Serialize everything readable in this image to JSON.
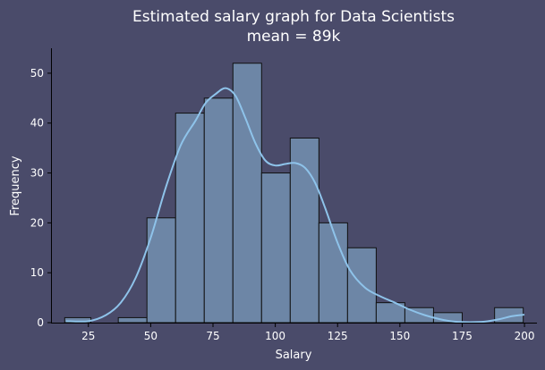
{
  "chart_data": {
    "type": "bar",
    "title_line1": "Estimated salary graph for Data Scientists",
    "title_line2": "mean = 89k",
    "xlabel": "Salary",
    "ylabel": "Frequency",
    "xlim": [
      10,
      205
    ],
    "ylim": [
      0,
      55
    ],
    "xticks": [
      25,
      50,
      75,
      100,
      125,
      150,
      175,
      200
    ],
    "yticks": [
      0,
      10,
      20,
      30,
      40,
      50
    ],
    "bins": [
      {
        "x0": 15.5,
        "x1": 26.0,
        "count": 1
      },
      {
        "x0": 37.0,
        "x1": 48.5,
        "count": 1
      },
      {
        "x0": 48.5,
        "x1": 60.0,
        "count": 21
      },
      {
        "x0": 60.0,
        "x1": 71.5,
        "count": 42
      },
      {
        "x0": 71.5,
        "x1": 83.0,
        "count": 45
      },
      {
        "x0": 83.0,
        "x1": 94.5,
        "count": 52
      },
      {
        "x0": 94.5,
        "x1": 106.0,
        "count": 30
      },
      {
        "x0": 106.0,
        "x1": 117.5,
        "count": 37
      },
      {
        "x0": 117.5,
        "x1": 129.0,
        "count": 20
      },
      {
        "x0": 129.0,
        "x1": 140.5,
        "count": 15
      },
      {
        "x0": 140.5,
        "x1": 152.0,
        "count": 4
      },
      {
        "x0": 152.0,
        "x1": 163.5,
        "count": 3
      },
      {
        "x0": 163.5,
        "x1": 175.0,
        "count": 2
      },
      {
        "x0": 188.0,
        "x1": 199.5,
        "count": 3
      }
    ],
    "kde": {
      "x": [
        16,
        25,
        32,
        38,
        44,
        50,
        56,
        62,
        68,
        72,
        76,
        80,
        84,
        88,
        92,
        96,
        100,
        104,
        108,
        112,
        116,
        120,
        125,
        130,
        136,
        142,
        148,
        154,
        160,
        166,
        172,
        178,
        184,
        190,
        195,
        200
      ],
      "y": [
        0.3,
        0.3,
        1.5,
        4,
        9,
        17,
        27,
        35.5,
        40.5,
        44,
        45.8,
        47,
        45.5,
        41,
        36,
        32.5,
        31.5,
        31.8,
        32,
        31,
        28,
        23,
        16,
        10.5,
        7,
        5.3,
        4,
        2.6,
        1.5,
        0.7,
        0.2,
        0.1,
        0.2,
        0.7,
        1.3,
        1.6
      ]
    }
  }
}
